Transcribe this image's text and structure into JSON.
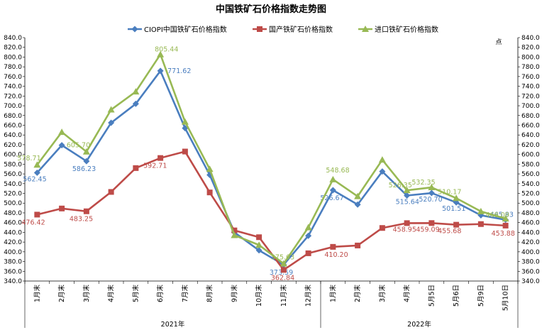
{
  "chart_data": {
    "type": "line",
    "title": "中国铁矿石价格指数走势图",
    "right_axis_label": "点",
    "categories": [
      "1月末",
      "2月末",
      "3月末",
      "4月末",
      "5月末",
      "6月末",
      "7月末",
      "8月末",
      "9月末",
      "10月末",
      "11月末",
      "12月末",
      "1月末",
      "2月末",
      "3月末",
      "4月末",
      "5月5日",
      "5月6日",
      "5月9日",
      "5月10日"
    ],
    "groups": [
      {
        "label": "2021年",
        "start": 0,
        "end": 11
      },
      {
        "label": "2022年",
        "start": 12,
        "end": 19
      }
    ],
    "ylim": [
      340,
      840
    ],
    "ytick_step": 20,
    "series": [
      {
        "name": "CIOPI中国铁矿石价格指数",
        "color": "#4a7ebf",
        "marker": "diamond",
        "values": [
          562.45,
          619,
          586.23,
          665,
          704,
          771.62,
          654,
          558,
          440,
          403,
          373.59,
          433,
          526.67,
          497,
          565,
          515.64,
          520.7,
          501.51,
          475,
          465.83
        ],
        "labels": [
          {
            "i": 0,
            "text": "562.45"
          },
          {
            "i": 2,
            "text": "586.23"
          },
          {
            "i": 5,
            "text": "771.62"
          },
          {
            "i": 10,
            "text": "373.59"
          },
          {
            "i": 12,
            "text": "526.67"
          },
          {
            "i": 15,
            "text": "515.64"
          },
          {
            "i": 16,
            "text": "520.70"
          },
          {
            "i": 17,
            "text": "501.51"
          },
          {
            "i": 19,
            "text": "465.83"
          }
        ]
      },
      {
        "name": "国产铁矿石价格指数",
        "color": "#be4b48",
        "marker": "square",
        "values": [
          476.42,
          489,
          483.25,
          523,
          572,
          592.71,
          606,
          522,
          444,
          430,
          362.84,
          397,
          410.2,
          413,
          449,
          458.95,
          459.09,
          455.68,
          457,
          453.88
        ],
        "labels": [
          {
            "i": 0,
            "text": "476.42"
          },
          {
            "i": 2,
            "text": "483.25"
          },
          {
            "i": 5,
            "text": "592.71"
          },
          {
            "i": 10,
            "text": "362.84"
          },
          {
            "i": 12,
            "text": "410.20"
          },
          {
            "i": 15,
            "text": "458.95"
          },
          {
            "i": 16,
            "text": "459.09"
          },
          {
            "i": 17,
            "text": "455.68"
          },
          {
            "i": 19,
            "text": "453.88"
          }
        ]
      },
      {
        "name": "进口铁矿石价格指数",
        "color": "#98b954",
        "marker": "triangle",
        "values": [
          578.71,
          646,
          605.7,
          692,
          729,
          805.44,
          667,
          570,
          434,
          414,
          375.63,
          450,
          548.68,
          514,
          589,
          526.35,
          532.35,
          510.17,
          483,
          468.09
        ],
        "labels": [
          {
            "i": 0,
            "text": "578.71"
          },
          {
            "i": 2,
            "text": "605.70"
          },
          {
            "i": 5,
            "text": "805.44"
          },
          {
            "i": 10,
            "text": "375.63"
          },
          {
            "i": 12,
            "text": "548.68"
          },
          {
            "i": 15,
            "text": "526.35"
          },
          {
            "i": 16,
            "text": "532.35"
          },
          {
            "i": 17,
            "text": "510.17"
          },
          {
            "i": 19,
            "text": "468.09"
          }
        ]
      }
    ]
  }
}
